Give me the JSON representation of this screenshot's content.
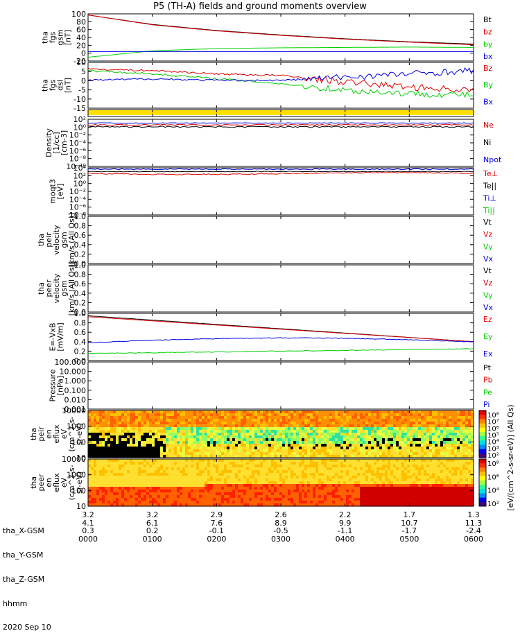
{
  "title": "P5 (TH-A) fields and ground moments overview",
  "colors": {
    "black": "#000000",
    "red": "#e00000",
    "green": "#00d000",
    "blue": "#0000e0",
    "yellow": "#ffe000"
  },
  "chart_data": [
    {
      "panel": "fgs_gsm",
      "type": "line",
      "ylabel": [
        "tha",
        "fgs",
        "gsm",
        "[nT]"
      ],
      "yticks": [
        "100",
        "80",
        "60",
        "40",
        "20",
        "0",
        "-20"
      ],
      "ylim": [
        -25,
        100
      ],
      "legend": [
        "Bt",
        "bz",
        "by",
        "bx"
      ],
      "x": [
        "0000",
        "0100",
        "0200",
        "0300",
        "0400",
        "0500",
        "0600"
      ],
      "series": [
        {
          "name": "Bt",
          "values": [
            97,
            72,
            56,
            44,
            34,
            26,
            20
          ]
        },
        {
          "name": "bz",
          "values": [
            97,
            71,
            55,
            43,
            33,
            25,
            18
          ]
        },
        {
          "name": "by",
          "values": [
            -15,
            2,
            8,
            10,
            11,
            12,
            11
          ]
        },
        {
          "name": "bx",
          "values": [
            0,
            0,
            0,
            0,
            0,
            0,
            0
          ]
        }
      ]
    },
    {
      "panel": "fgs_dsl",
      "type": "line",
      "ylabel": [
        "tha",
        "fgs",
        "dsl",
        "[nT]"
      ],
      "yticks": [
        "10",
        "5",
        "0",
        "-5",
        "-10",
        "-15"
      ],
      "ylim": [
        -18,
        10
      ],
      "legend": [
        "Bz",
        "By",
        "Bx"
      ],
      "x": [
        "0000",
        "0100",
        "0200",
        "0300",
        "0400",
        "0500",
        "0600"
      ],
      "series": [
        {
          "name": "Bz",
          "values": [
            6,
            5,
            3,
            2,
            -2,
            -5,
            -7
          ]
        },
        {
          "name": "By",
          "values": [
            5,
            3,
            0,
            -3,
            -7,
            -9,
            -10
          ]
        },
        {
          "name": "Bx",
          "values": [
            -1,
            0,
            -1,
            -1,
            1,
            3,
            5
          ]
        }
      ]
    },
    {
      "panel": "density",
      "type": "line",
      "ylabel": [
        "Density",
        "[1/cc]",
        "[cm-3]"
      ],
      "yticks": [
        "10²",
        "10⁰",
        "10⁻²",
        "10⁻⁴",
        "10⁻⁶",
        "10⁻⁸",
        "10⁻¹⁰"
      ],
      "legend": [
        "Ne",
        "Ni",
        "Npot"
      ]
    },
    {
      "panel": "temperature",
      "type": "line",
      "ylabel": [
        "moqt3",
        "[eV]"
      ],
      "yticks": [
        "10⁴",
        "10²",
        "10⁰",
        "10⁻²",
        "10⁻⁴",
        "10⁻⁶",
        "10⁻⁸"
      ],
      "legend": [
        "Te⊥",
        "Te||",
        "Ti⊥",
        "Ti||"
      ]
    },
    {
      "panel": "peir_velocity",
      "type": "line",
      "ylabel": [
        "tha",
        "peir",
        "velocity",
        "gsm",
        "[km/s (All Qs)]"
      ],
      "yticks": [
        "1.0",
        "0.8",
        "0.6",
        "0.4",
        "0.2",
        "0.0"
      ],
      "ylim": [
        0,
        1
      ],
      "legend": [
        "Vt",
        "Vz",
        "Vy",
        "Vx"
      ]
    },
    {
      "panel": "peer_velocity",
      "type": "line",
      "ylabel": [
        "tha",
        "peer",
        "velocity",
        "gsm",
        "[km/s (All Qs)]"
      ],
      "yticks": [
        "1.0",
        "0.8",
        "0.6",
        "0.4",
        "0.2",
        "0.0"
      ],
      "ylim": [
        0,
        1
      ],
      "legend": [
        "Vt",
        "Vz",
        "Vy",
        "Vx"
      ]
    },
    {
      "panel": "efield",
      "type": "line",
      "ylabel": [
        "E=-VxB",
        "[mV/m]"
      ],
      "yticks": [
        "1.0",
        "0.8",
        "0.6",
        "0.4",
        "0.2",
        "0.0"
      ],
      "ylim": [
        0,
        1
      ],
      "legend": [
        "Ez",
        "Ey",
        "Ex"
      ]
    },
    {
      "panel": "pressure",
      "type": "line",
      "ylabel": [
        "Pressure",
        "[nPa]"
      ],
      "yticks": [
        "100.000",
        "10.000",
        "1.000",
        "0.100",
        "0.010",
        "0.001"
      ],
      "legend": [
        "Pt",
        "Pb",
        "Pe",
        "Pi"
      ]
    },
    {
      "panel": "peir_en_eflux",
      "type": "heatmap",
      "ylabel": [
        "tha",
        "peir",
        "en",
        "eflux",
        "eV",
        "(cm^2-s-",
        "sr-eV)"
      ],
      "yticks": [
        "10000",
        "1000",
        "100",
        "10"
      ],
      "colorbar_ticks": [
        "10⁸",
        "10⁷",
        "10⁶",
        "10⁵",
        "10⁴",
        "10³",
        "10²"
      ],
      "colorbar_label": "[eV/(cm^2-s-sr-eV)] (All Qs)"
    },
    {
      "panel": "peer_en_eflux",
      "type": "heatmap",
      "ylabel": [
        "tha",
        "peer",
        "en",
        "eflux",
        "eV",
        "(cm^2-s-",
        "sr-eV)"
      ],
      "yticks": [
        "10000",
        "1000",
        "100",
        "10"
      ],
      "colorbar_ticks": [
        "10⁸",
        "10⁶",
        "10⁴",
        "10²"
      ],
      "colorbar_label": "[eV/(cm^2-s-sr-eV)]"
    }
  ],
  "footer": {
    "row_labels": [
      "tha_X-GSM",
      "tha_Y-GSM",
      "tha_Z-GSM",
      "hhmm",
      "2020 Sep 10"
    ],
    "columns": [
      {
        "x": "3.2",
        "y": "4.1",
        "z": "0.3",
        "t": "0000"
      },
      {
        "x": "3.2",
        "y": "6.1",
        "z": "0.2",
        "t": "0100"
      },
      {
        "x": "2.9",
        "y": "7.6",
        "z": "-0.1",
        "t": "0200"
      },
      {
        "x": "2.6",
        "y": "8.9",
        "z": "-0.5",
        "t": "0300"
      },
      {
        "x": "2.2",
        "y": "9.9",
        "z": "-1.1",
        "t": "0400"
      },
      {
        "x": "1.7",
        "y": "10.7",
        "z": "-1.7",
        "t": "0500"
      },
      {
        "x": "1.3",
        "y": "11.3",
        "z": "-2.4",
        "t": "0600"
      }
    ]
  }
}
